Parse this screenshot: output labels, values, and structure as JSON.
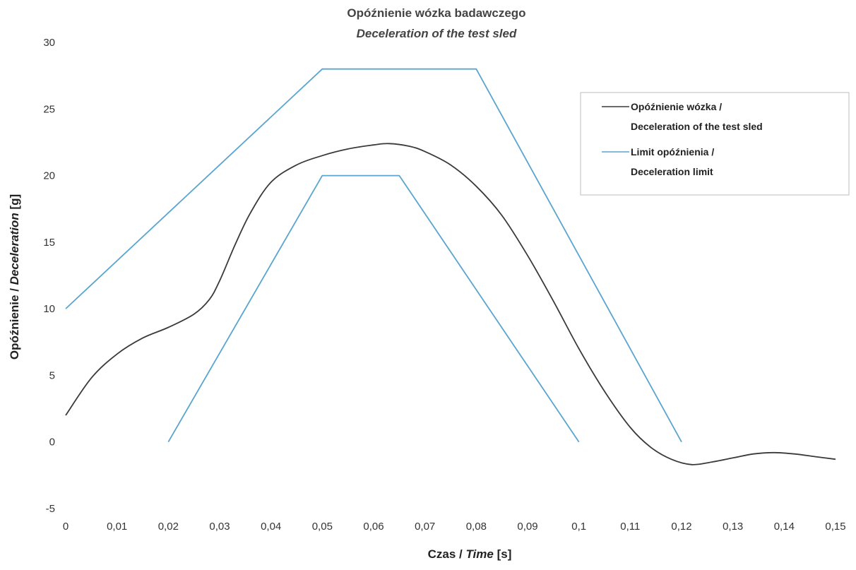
{
  "chart_data": {
    "type": "line",
    "title": "Opóźnienie wózka badawczego",
    "subtitle": "Deceleration of the test sled",
    "xlabel_normal_1": "Czas / ",
    "xlabel_italic": "Time",
    "xlabel_normal_2": " [s]",
    "ylabel_normal": "Opóźnienie / ",
    "ylabel_italic": "Deceleration",
    "ylabel_unit": " [g]",
    "xlim": [
      0,
      0.15
    ],
    "ylim": [
      -5,
      30
    ],
    "x_ticks": [
      "0",
      "0,01",
      "0,02",
      "0,03",
      "0,04",
      "0,05",
      "0,06",
      "0,07",
      "0,08",
      "0,09",
      "0,1",
      "0,11",
      "0,12",
      "0,13",
      "0,14",
      "0,15"
    ],
    "y_ticks": [
      "30",
      "25",
      "20",
      "15",
      "10",
      "5",
      "0",
      "-5"
    ],
    "grid": false,
    "legend_position": "top-right",
    "legend": [
      {
        "line1": "Opóźnienie wózka /",
        "line2": "Deceleration of the test sled",
        "color": "#3a3a3a"
      },
      {
        "line1": "Limit opóźnienia /",
        "line2": "Deceleration limit",
        "color": "#5aa5cf"
      }
    ],
    "series": [
      {
        "name": "Opóźnienie wózka / Deceleration of the test sled",
        "color": "#3a3a3a",
        "points": [
          [
            0,
            2.0
          ],
          [
            0.005,
            4.8
          ],
          [
            0.01,
            6.6
          ],
          [
            0.015,
            7.8
          ],
          [
            0.02,
            8.6
          ],
          [
            0.025,
            9.6
          ],
          [
            0.028,
            10.7
          ],
          [
            0.03,
            12.1
          ],
          [
            0.033,
            14.8
          ],
          [
            0.036,
            17.2
          ],
          [
            0.04,
            19.5
          ],
          [
            0.045,
            20.8
          ],
          [
            0.05,
            21.5
          ],
          [
            0.055,
            22.0
          ],
          [
            0.06,
            22.3
          ],
          [
            0.063,
            22.4
          ],
          [
            0.067,
            22.2
          ],
          [
            0.07,
            21.8
          ],
          [
            0.075,
            20.8
          ],
          [
            0.08,
            19.2
          ],
          [
            0.085,
            17.0
          ],
          [
            0.09,
            14.0
          ],
          [
            0.095,
            10.6
          ],
          [
            0.1,
            7.0
          ],
          [
            0.105,
            3.8
          ],
          [
            0.11,
            1.1
          ],
          [
            0.114,
            -0.4
          ],
          [
            0.118,
            -1.3
          ],
          [
            0.122,
            -1.7
          ],
          [
            0.126,
            -1.5
          ],
          [
            0.13,
            -1.2
          ],
          [
            0.134,
            -0.9
          ],
          [
            0.138,
            -0.8
          ],
          [
            0.142,
            -0.9
          ],
          [
            0.146,
            -1.1
          ],
          [
            0.15,
            -1.3
          ]
        ]
      },
      {
        "name": "Limit opóźnienia / Deceleration limit (upper)",
        "color": "#5aa5cf",
        "points": [
          [
            0,
            10
          ],
          [
            0.05,
            28
          ],
          [
            0.08,
            28
          ],
          [
            0.12,
            0
          ]
        ]
      },
      {
        "name": "Limit opóźnienia / Deceleration limit (lower)",
        "color": "#5aa5cf",
        "points": [
          [
            0.02,
            0
          ],
          [
            0.05,
            20
          ],
          [
            0.065,
            20
          ],
          [
            0.1,
            0
          ]
        ]
      }
    ]
  }
}
